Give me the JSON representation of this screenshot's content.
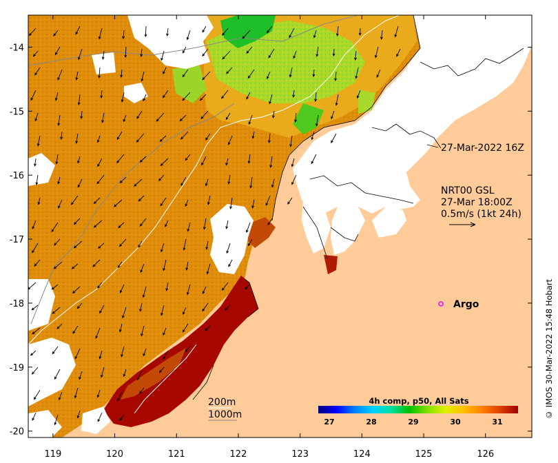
{
  "map": {
    "lon_range": [
      118.6,
      126.75
    ],
    "lat_range": [
      -20.1,
      -13.5
    ],
    "lon_ticks": [
      119,
      120,
      121,
      122,
      123,
      124,
      125,
      126
    ],
    "lat_ticks": [
      -14,
      -15,
      -16,
      -17,
      -18,
      -19,
      -20
    ],
    "colors": {
      "land": "#ffcc99",
      "cloud": "#ffffff",
      "sst_warm": "#e0900a",
      "sst_hot": "#a60800",
      "sst_cool": "#9ad82a",
      "sst_green": "#1fbf2a"
    }
  },
  "labels": {
    "track_time": "27-Mar-2022 16Z",
    "current_source": "NRT00 GSL",
    "current_time": "27-Mar 18:00Z",
    "current_scale": "0.5m/s (1kt 24h)",
    "argo": "Argo",
    "contour_200": "200m",
    "contour_1000": "1000m",
    "credit": "© IMOS 30-Mar-2022 15:48 Hobart"
  },
  "colorbar": {
    "title": "4h comp, p50, All Sats",
    "ticks": [
      "27",
      "28",
      "29",
      "30",
      "31"
    ],
    "stops": [
      "#00007f",
      "#0000ff",
      "#0080ff",
      "#00d0ff",
      "#00e0a0",
      "#00c000",
      "#80e000",
      "#e0f000",
      "#ffc000",
      "#ff8000",
      "#e04000",
      "#a00000"
    ]
  }
}
